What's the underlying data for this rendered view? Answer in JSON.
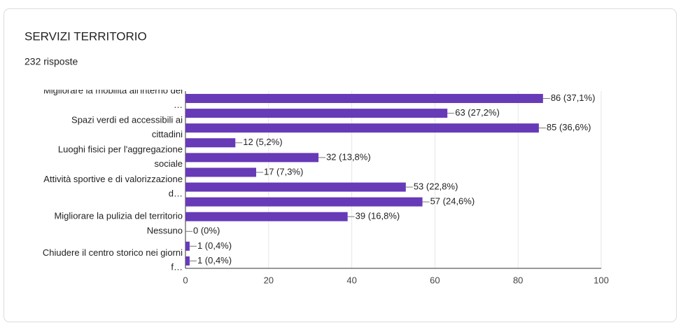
{
  "chart_data": {
    "type": "bar",
    "orientation": "horizontal",
    "title": "SERVIZI TERRITORIO",
    "subtitle": "232 risposte",
    "categories": [
      "Migliorare la mobilità all'interno del …",
      null,
      "Spazi verdi ed accessibili ai cittadini",
      null,
      "Luoghi fisici per l'aggregazione sociale",
      null,
      "Attività sportive e di valorizzazione d…",
      null,
      "Migliorare la pulizia del territorio",
      "Nessuno",
      null,
      "Chiudere il centro storico nei giorni f…"
    ],
    "values": [
      86,
      63,
      85,
      12,
      32,
      17,
      53,
      57,
      39,
      0,
      1,
      1
    ],
    "value_labels": [
      "86 (37,1%)",
      "63 (27,2%)",
      "85 (36,6%)",
      "12 (5,2%)",
      "32 (13,8%)",
      "17 (7,3%)",
      "53 (22,8%)",
      "57 (24,6%)",
      "39 (16,8%)",
      "0 (0%)",
      "1 (0,4%)",
      "1 (0,4%)"
    ],
    "color": "#673ab7",
    "xlim": [
      0,
      100
    ],
    "xticks": [
      0,
      20,
      40,
      60,
      80,
      100
    ],
    "grid": true
  }
}
